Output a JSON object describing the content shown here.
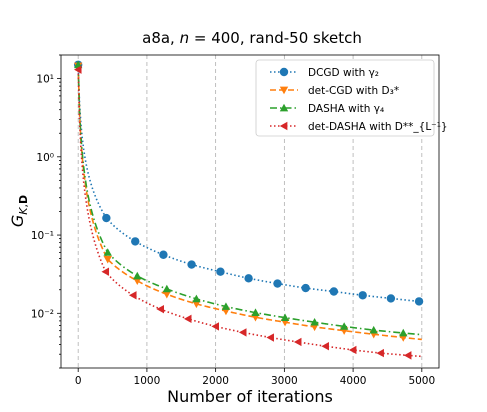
{
  "chart_data": {
    "type": "line",
    "title": "a8a, n = 400, rand-50 sketch",
    "xlabel": "Number of iterations",
    "ylabel": "G_{K,D}",
    "xlim": [
      -250,
      5250
    ],
    "ylim": [
      0.002,
      20
    ],
    "yscale": "log",
    "grid": "vertical dashed",
    "legend_position": "top-right",
    "x_ticks": [
      0,
      1000,
      2000,
      3000,
      4000,
      5000
    ],
    "x_tick_labels": [
      "0",
      "1000",
      "2000",
      "3000",
      "4000",
      "5000"
    ],
    "y_ticks": [
      0.01,
      0.1,
      1,
      10
    ],
    "y_tick_labels": [
      "10⁻²",
      "10⁻¹",
      "10⁰",
      "10¹"
    ],
    "series": [
      {
        "name": "DCGD with γ₂",
        "color": "#1f77b4",
        "linestyle": "dotted",
        "marker": "circle",
        "x": [
          0,
          410,
          830,
          1240,
          1650,
          2070,
          2480,
          2900,
          3310,
          3720,
          4140,
          4550,
          4960
        ],
        "y": [
          15,
          0.165,
          0.083,
          0.056,
          0.042,
          0.034,
          0.028,
          0.024,
          0.021,
          0.019,
          0.017,
          0.0155,
          0.0142
        ]
      },
      {
        "name": "det-CGD with D₃*",
        "color": "#ff7f0e",
        "linestyle": "dashed",
        "marker": "triangle-down",
        "x": [
          0,
          430,
          860,
          1290,
          1720,
          2150,
          2580,
          3010,
          3440,
          3870,
          4300,
          4730
        ],
        "y": [
          14.5,
          0.049,
          0.026,
          0.0175,
          0.0132,
          0.0107,
          0.0089,
          0.0077,
          0.0067,
          0.006,
          0.0054,
          0.0049
        ]
      },
      {
        "name": "DASHA with γ₄",
        "color": "#2ca02c",
        "linestyle": "dashdot",
        "marker": "triangle-up",
        "x": [
          0,
          430,
          860,
          1290,
          1720,
          2150,
          2580,
          3010,
          3440,
          3870,
          4300,
          4730
        ],
        "y": [
          15,
          0.06,
          0.03,
          0.0205,
          0.0153,
          0.0122,
          0.0102,
          0.0088,
          0.0077,
          0.0068,
          0.0061,
          0.0056
        ]
      },
      {
        "name": "det-DASHA with D**_{L⁻¹}",
        "color": "#d62728",
        "linestyle": "dotted",
        "marker": "triangle-left",
        "x": [
          0,
          400,
          800,
          1200,
          1600,
          2000,
          2400,
          2800,
          3200,
          3600,
          4000,
          4400,
          4800
        ],
        "y": [
          13,
          0.034,
          0.017,
          0.0113,
          0.0085,
          0.0068,
          0.0057,
          0.0049,
          0.0043,
          0.0038,
          0.0034,
          0.0031,
          0.0029
        ]
      }
    ]
  }
}
